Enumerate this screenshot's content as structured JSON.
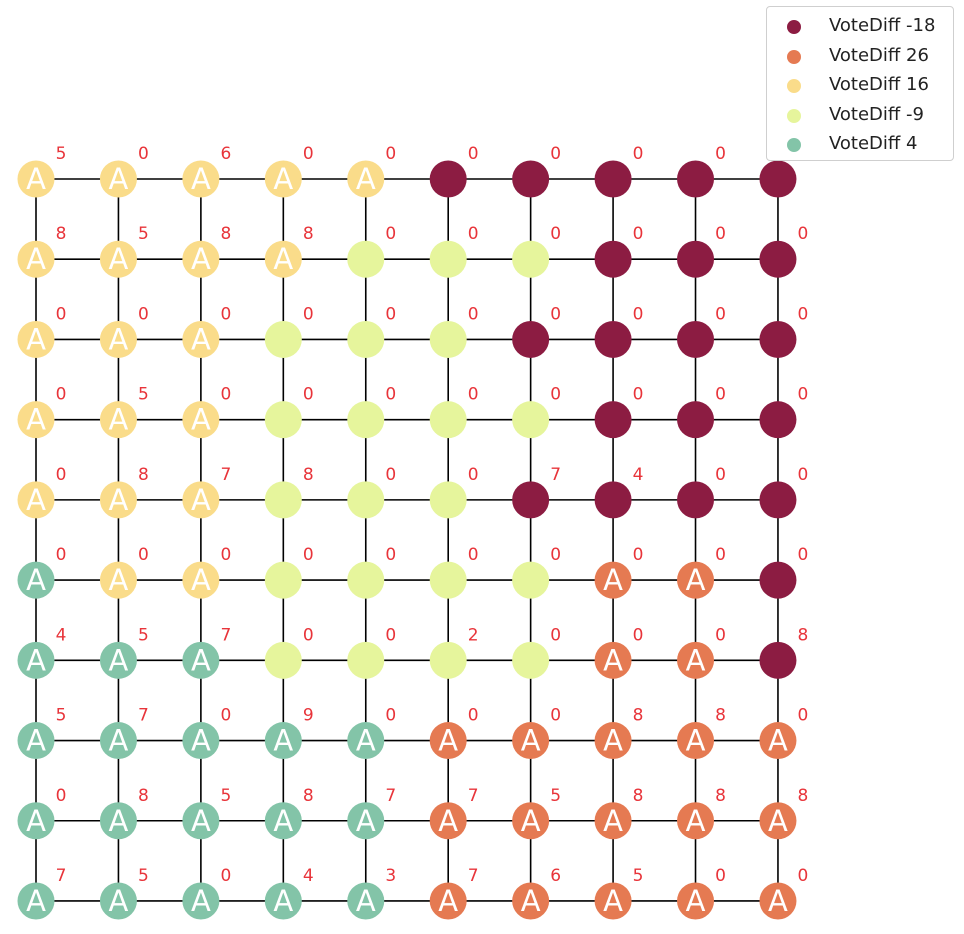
{
  "colors": {
    "edge": "#000000",
    "number_label": "#e8343a",
    "node_letter": "#ffffff"
  },
  "legend": [
    {
      "label": "VoteDiff -18",
      "color": "#8c1c42"
    },
    {
      "label": "VoteDiff 26",
      "color": "#e57a52"
    },
    {
      "label": "VoteDiff 16",
      "color": "#fadc8a"
    },
    {
      "label": "VoteDiff -9",
      "color": "#e6f59c"
    },
    {
      "label": "VoteDiff 4",
      "color": "#83c4a8"
    }
  ],
  "grid": {
    "rows": 10,
    "cols": 10,
    "node_groups": [
      [
        2,
        2,
        2,
        2,
        2,
        0,
        0,
        0,
        0,
        0
      ],
      [
        2,
        2,
        2,
        2,
        3,
        3,
        3,
        0,
        0,
        0
      ],
      [
        2,
        2,
        2,
        3,
        3,
        3,
        0,
        0,
        0,
        0
      ],
      [
        2,
        2,
        2,
        3,
        3,
        3,
        3,
        0,
        0,
        0
      ],
      [
        2,
        2,
        2,
        3,
        3,
        3,
        0,
        0,
        0,
        0
      ],
      [
        4,
        2,
        2,
        3,
        3,
        3,
        3,
        1,
        1,
        0
      ],
      [
        4,
        4,
        4,
        3,
        3,
        3,
        3,
        1,
        1,
        0
      ],
      [
        4,
        4,
        4,
        4,
        4,
        1,
        1,
        1,
        1,
        1
      ],
      [
        4,
        4,
        4,
        4,
        4,
        1,
        1,
        1,
        1,
        1
      ],
      [
        4,
        4,
        4,
        4,
        4,
        1,
        1,
        1,
        1,
        1
      ]
    ],
    "node_letters": [
      [
        "A",
        "A",
        "A",
        "A",
        "A",
        "",
        "",
        "",
        "",
        ""
      ],
      [
        "A",
        "A",
        "A",
        "A",
        "",
        "",
        "",
        "",
        "",
        ""
      ],
      [
        "A",
        "A",
        "A",
        "",
        "",
        "",
        "",
        "",
        "",
        ""
      ],
      [
        "A",
        "A",
        "A",
        "",
        "",
        "",
        "",
        "",
        "",
        ""
      ],
      [
        "A",
        "A",
        "A",
        "",
        "",
        "",
        "",
        "",
        "",
        ""
      ],
      [
        "A",
        "A",
        "A",
        "",
        "",
        "",
        "",
        "A",
        "A",
        ""
      ],
      [
        "A",
        "A",
        "A",
        "",
        "",
        "",
        "",
        "A",
        "A",
        ""
      ],
      [
        "A",
        "A",
        "A",
        "A",
        "A",
        "A",
        "A",
        "A",
        "A",
        "A"
      ],
      [
        "A",
        "A",
        "A",
        "A",
        "A",
        "A",
        "A",
        "A",
        "A",
        "A"
      ],
      [
        "A",
        "A",
        "A",
        "A",
        "A",
        "A",
        "A",
        "A",
        "A",
        "A"
      ]
    ],
    "node_numbers": [
      [
        "5",
        "0",
        "6",
        "0",
        "0",
        "0",
        "0",
        "0",
        "0",
        "0"
      ],
      [
        "8",
        "5",
        "8",
        "8",
        "0",
        "0",
        "0",
        "0",
        "0",
        "0"
      ],
      [
        "0",
        "0",
        "0",
        "0",
        "0",
        "0",
        "0",
        "0",
        "0",
        "0"
      ],
      [
        "0",
        "5",
        "0",
        "0",
        "0",
        "0",
        "0",
        "0",
        "0",
        "0"
      ],
      [
        "0",
        "8",
        "7",
        "8",
        "0",
        "0",
        "7",
        "4",
        "0",
        "0"
      ],
      [
        "0",
        "0",
        "0",
        "0",
        "0",
        "0",
        "0",
        "0",
        "0",
        "0"
      ],
      [
        "4",
        "5",
        "7",
        "0",
        "0",
        "2",
        "0",
        "0",
        "0",
        "8"
      ],
      [
        "5",
        "7",
        "0",
        "9",
        "0",
        "0",
        "0",
        "8",
        "8",
        "0"
      ],
      [
        "0",
        "8",
        "5",
        "8",
        "7",
        "7",
        "5",
        "8",
        "8",
        "8"
      ],
      [
        "7",
        "5",
        "0",
        "4",
        "3",
        "7",
        "6",
        "5",
        "0",
        "0"
      ]
    ]
  }
}
